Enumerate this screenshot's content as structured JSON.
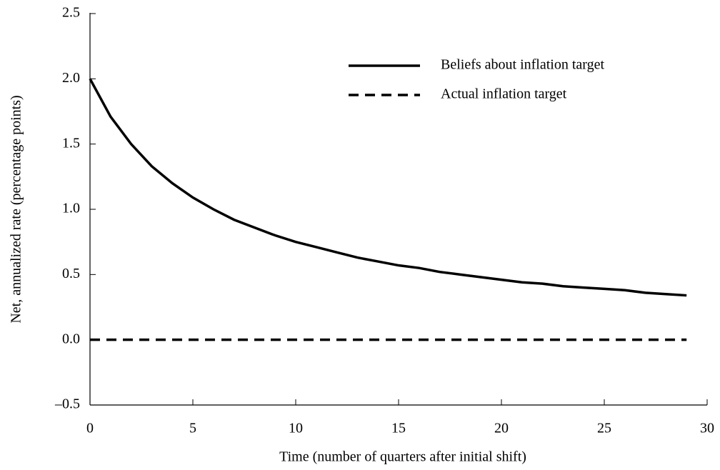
{
  "chart_data": {
    "type": "line",
    "xlabel": "Time (number of quarters after initial shift)",
    "ylabel": "Net, annualized rate (percentage points)",
    "x": [
      0,
      1,
      2,
      3,
      4,
      5,
      6,
      7,
      8,
      9,
      10,
      11,
      12,
      13,
      14,
      15,
      16,
      17,
      18,
      19,
      20,
      21,
      22,
      23,
      24,
      25,
      26,
      27,
      28,
      29
    ],
    "series": [
      {
        "name": "Beliefs about inflation target",
        "color": "#000000",
        "dash": "solid",
        "values": [
          2.0,
          1.71,
          1.5,
          1.33,
          1.2,
          1.09,
          1.0,
          0.92,
          0.86,
          0.8,
          0.75,
          0.71,
          0.67,
          0.63,
          0.6,
          0.57,
          0.55,
          0.52,
          0.5,
          0.48,
          0.46,
          0.44,
          0.43,
          0.41,
          0.4,
          0.39,
          0.38,
          0.36,
          0.35,
          0.34
        ]
      },
      {
        "name": "Actual inflation target",
        "color": "#000000",
        "dash": "dashed",
        "values": [
          0,
          0,
          0,
          0,
          0,
          0,
          0,
          0,
          0,
          0,
          0,
          0,
          0,
          0,
          0,
          0,
          0,
          0,
          0,
          0,
          0,
          0,
          0,
          0,
          0,
          0,
          0,
          0,
          0,
          0
        ]
      }
    ],
    "xlim": [
      0,
      30
    ],
    "xticks": [
      0,
      5,
      10,
      15,
      20,
      25,
      30
    ],
    "ylim": [
      -0.5,
      2.5
    ],
    "yticks": [
      {
        "value": -0.5,
        "label": "–0.5"
      },
      {
        "value": 0,
        "label": "0.0"
      },
      0.5,
      {
        "value": 1,
        "label": "1.0"
      },
      1.5,
      {
        "value": 2,
        "label": "2.0"
      },
      2.5
    ],
    "grid": false,
    "legend": "upper right"
  }
}
